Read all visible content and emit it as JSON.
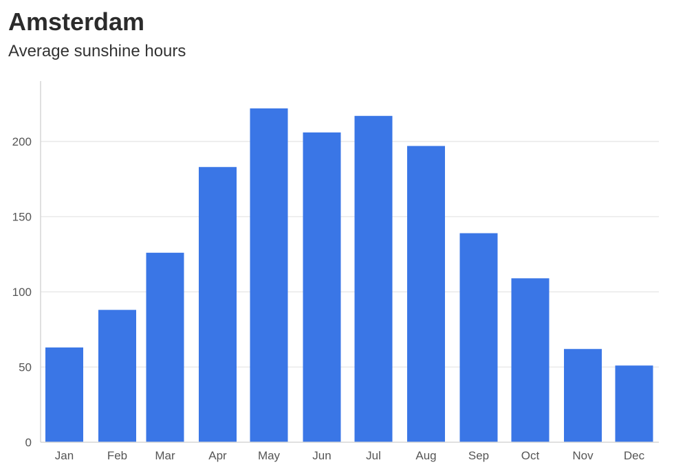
{
  "title": "Amsterdam",
  "subtitle": "Average sunshine hours",
  "colors": {
    "bar": "#3a76e6",
    "grid": "#e9e9e9",
    "axis": "#d6d6d6",
    "tick_text": "#555555"
  },
  "chart_data": {
    "type": "bar",
    "title": "Amsterdam",
    "subtitle": "Average sunshine hours",
    "xlabel": "",
    "ylabel": "",
    "categories": [
      "Jan",
      "Feb",
      "Mar",
      "Apr",
      "May",
      "Jun",
      "Jul",
      "Aug",
      "Sep",
      "Oct",
      "Nov",
      "Dec"
    ],
    "values": [
      63,
      88,
      126,
      183,
      222,
      206,
      217,
      197,
      139,
      109,
      62,
      51
    ],
    "ylim": [
      0,
      240
    ],
    "yticks": [
      0,
      50,
      100,
      150,
      200
    ],
    "grid": true,
    "legend": "none"
  }
}
